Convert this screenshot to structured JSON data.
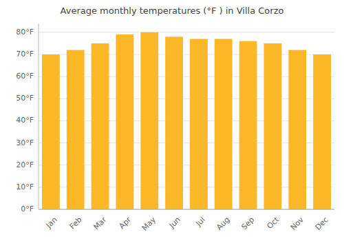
{
  "chart_data": {
    "type": "bar",
    "title": "Average monthly temperatures (°F ) in Villa Corzo",
    "categories": [
      "Jan",
      "Feb",
      "Mar",
      "Apr",
      "May",
      "Jun",
      "Jul",
      "Aug",
      "Sep",
      "Oct",
      "Nov",
      "Dec"
    ],
    "values": [
      70,
      72,
      75,
      79,
      80,
      78,
      77,
      77,
      76,
      75,
      72,
      70
    ],
    "color": "#FDB827",
    "ylim": [
      0,
      84
    ],
    "yticks": [
      {
        "value": 0,
        "label": "0°F"
      },
      {
        "value": 10,
        "label": "10°F"
      },
      {
        "value": 20,
        "label": "20°F"
      },
      {
        "value": 30,
        "label": "30°F"
      },
      {
        "value": 40,
        "label": "40°F"
      },
      {
        "value": 50,
        "label": "50°F"
      },
      {
        "value": 60,
        "label": "60°F"
      },
      {
        "value": 70,
        "label": "70°F"
      },
      {
        "value": 80,
        "label": "80°F"
      }
    ],
    "grid": true
  }
}
